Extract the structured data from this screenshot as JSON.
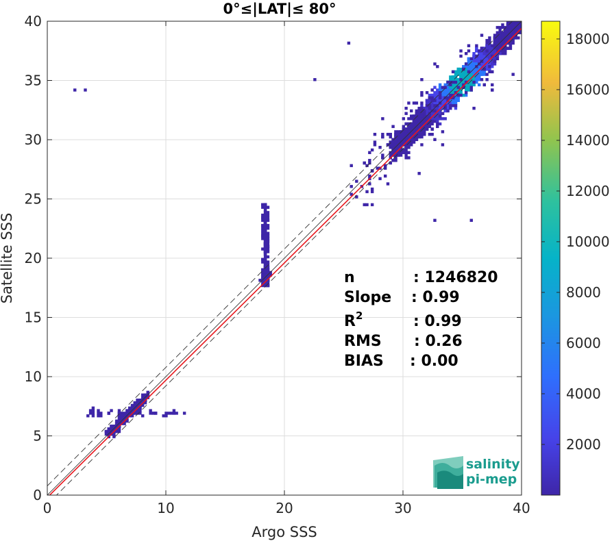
{
  "chart_data": {
    "type": "heatmap",
    "title": "0°≤|LAT|≤ 80°",
    "xlabel": "Argo SSS",
    "ylabel": "Satellite SSS",
    "xlim": [
      0,
      40
    ],
    "ylim": [
      0,
      40
    ],
    "x_ticks": [
      "0",
      "10",
      "20",
      "30",
      "40"
    ],
    "y_ticks": [
      "0",
      "5",
      "10",
      "15",
      "20",
      "25",
      "30",
      "35",
      "40"
    ],
    "grid": true,
    "colorbar": {
      "range": [
        0,
        18700
      ],
      "ticks": [
        "2000",
        "4000",
        "6000",
        "8000",
        "10000",
        "12000",
        "14000",
        "16000",
        "18000"
      ],
      "colormap": "parula"
    },
    "lines": [
      {
        "style": "black solid",
        "description": "1:1",
        "slope": 1,
        "intercept": 0
      },
      {
        "style": "black dashed",
        "slope": 1,
        "intercept": 0.78
      },
      {
        "style": "black dashed",
        "slope": 1,
        "intercept": -0.78
      },
      {
        "style": "red solid",
        "slope": 0.99,
        "intercept": -0.2
      }
    ],
    "density_regions": [
      {
        "x_range": [
          33,
          36
        ],
        "y_range": [
          33,
          36
        ],
        "count_level": "high (~10000-18000)"
      },
      {
        "x_range": [
          30,
          40
        ],
        "y_range": [
          28,
          40
        ],
        "count_level": "low-medium"
      },
      {
        "x_range": [
          17.8,
          19.2
        ],
        "y_range": [
          17,
          25
        ],
        "count_level": "low"
      },
      {
        "x_range": [
          5,
          8.5
        ],
        "y_range": [
          5,
          8.5
        ],
        "count_level": "low"
      }
    ],
    "stats": [
      {
        "label": "n",
        "value": ": 1246820"
      },
      {
        "label": "Slope",
        "value": ": 0.99"
      },
      {
        "label": "R",
        "sup": "2",
        "value": ": 0.99"
      },
      {
        "label": "RMS",
        "value": ": 0.26"
      },
      {
        "label": "BIAS",
        "value": ": 0.00"
      }
    ]
  },
  "logo": {
    "line1": "salinity",
    "line2": "pi-mep"
  },
  "colors": {
    "red_line": "#e8161c",
    "logo": "#1a9c8e",
    "low": "#3e26a8",
    "high": "#f9fb0e"
  }
}
